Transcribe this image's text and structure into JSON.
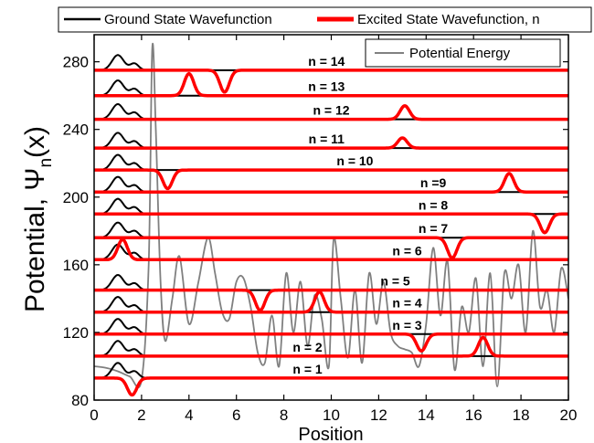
{
  "chart_data": {
    "type": "line",
    "title": "",
    "xlabel": "Position",
    "ylabel": "Potential, Ψ",
    "ylabel_subscript": "n",
    "ylabel_suffix": "(x)",
    "xlim": [
      0,
      20
    ],
    "ylim": [
      80,
      296
    ],
    "xticks": [
      0,
      2,
      4,
      6,
      8,
      10,
      12,
      14,
      16,
      18,
      20
    ],
    "yticks": [
      80,
      120,
      160,
      200,
      240,
      280
    ],
    "grid": false,
    "legend": {
      "ground": "Ground State Wavefunction",
      "excited": "Excited State Wavefunction, n",
      "potential": "Potential Energy"
    },
    "colors": {
      "ground": "#000000",
      "excited": "#ff0000",
      "potential": "#808080"
    },
    "potential": {
      "x": [
        0,
        0.5,
        1,
        1.5,
        2,
        2.3,
        2.45,
        2.6,
        2.8,
        3.0,
        3.3,
        3.6,
        4.0,
        4.4,
        4.8,
        5.1,
        5.4,
        5.7,
        6.0,
        6.3,
        6.6,
        6.9,
        7.2,
        7.5,
        7.8,
        8.1,
        8.4,
        8.7,
        9.0,
        9.3,
        9.6,
        9.9,
        10.1,
        10.4,
        10.7,
        11.0,
        11.3,
        11.6,
        11.9,
        12.2,
        12.5,
        12.8,
        13.1,
        13.4,
        13.7,
        14.0,
        14.3,
        14.6,
        14.9,
        15.2,
        15.5,
        15.8,
        16.1,
        16.4,
        16.7,
        17.0,
        17.3,
        17.6,
        17.9,
        18.2,
        18.5,
        18.8,
        19.1,
        19.4,
        19.7,
        20.0
      ],
      "y": [
        100,
        99,
        97,
        94,
        92,
        160,
        288,
        240,
        150,
        115,
        140,
        165,
        125,
        150,
        176,
        155,
        132,
        128,
        150,
        152,
        135,
        108,
        102,
        130,
        100,
        155,
        120,
        150,
        112,
        142,
        128,
        100,
        175,
        140,
        105,
        145,
        102,
        155,
        125,
        150,
        120,
        112,
        110,
        108,
        100,
        125,
        170,
        130,
        162,
        98,
        135,
        120,
        152,
        100,
        155,
        88,
        155,
        140,
        160,
        120,
        180,
        135,
        145,
        120,
        158,
        140
      ]
    },
    "levels": [
      {
        "n": 1,
        "label": "n = 1",
        "energy": 93,
        "label_x": 9.0,
        "ground_x": 1.0,
        "excited_x": 1.6,
        "excited_amp": -10
      },
      {
        "n": 2,
        "label": "n = 2",
        "energy": 106,
        "label_x": 9.0,
        "ground_x": 1.0,
        "excited_x": 16.4,
        "excited_amp": 11
      },
      {
        "n": 3,
        "label": "n = 3",
        "energy": 119,
        "label_x": 13.2,
        "ground_x": 1.0,
        "excited_x": 13.8,
        "excited_amp": -10
      },
      {
        "n": 4,
        "label": "n = 4",
        "energy": 132,
        "label_x": 13.2,
        "ground_x": 1.0,
        "excited_x": 9.5,
        "excited_amp": 12
      },
      {
        "n": 5,
        "label": "n = 5",
        "energy": 145,
        "label_x": 12.7,
        "ground_x": 1.0,
        "excited_x": 7.0,
        "excited_amp": -12
      },
      {
        "n": 6,
        "label": "n = 6",
        "energy": 163,
        "label_x": 13.2,
        "ground_x": 1.0,
        "excited_x": 1.2,
        "excited_amp": 12
      },
      {
        "n": 7,
        "label": "n = 7",
        "energy": 176,
        "label_x": 14.3,
        "ground_x": 1.0,
        "excited_x": 15.1,
        "excited_amp": -12
      },
      {
        "n": 8,
        "label": "n = 8",
        "energy": 190,
        "label_x": 14.3,
        "ground_x": 1.0,
        "excited_x": 19.0,
        "excited_amp": -11
      },
      {
        "n": 9,
        "label": "n =9",
        "energy": 203,
        "label_x": 14.3,
        "ground_x": 1.0,
        "excited_x": 17.5,
        "excited_amp": 11
      },
      {
        "n": 10,
        "label": "n = 10",
        "energy": 216,
        "label_x": 11.0,
        "ground_x": 1.0,
        "excited_x": 3.1,
        "excited_amp": -11
      },
      {
        "n": 11,
        "label": "n = 11",
        "energy": 229,
        "label_x": 9.8,
        "ground_x": 1.0,
        "excited_x": 13.0,
        "excited_amp": 6
      },
      {
        "n": 12,
        "label": "n = 12",
        "energy": 246,
        "label_x": 10.0,
        "ground_x": 1.0,
        "excited_x": 13.1,
        "excited_amp": 8
      },
      {
        "n": 13,
        "label": "n = 13",
        "energy": 260,
        "label_x": 9.8,
        "ground_x": 1.0,
        "excited_x": 4.0,
        "excited_amp": 13
      },
      {
        "n": 14,
        "label": "n = 14",
        "energy": 275,
        "label_x": 9.8,
        "ground_x": 1.0,
        "excited_x": 5.5,
        "excited_amp": -13
      }
    ]
  }
}
